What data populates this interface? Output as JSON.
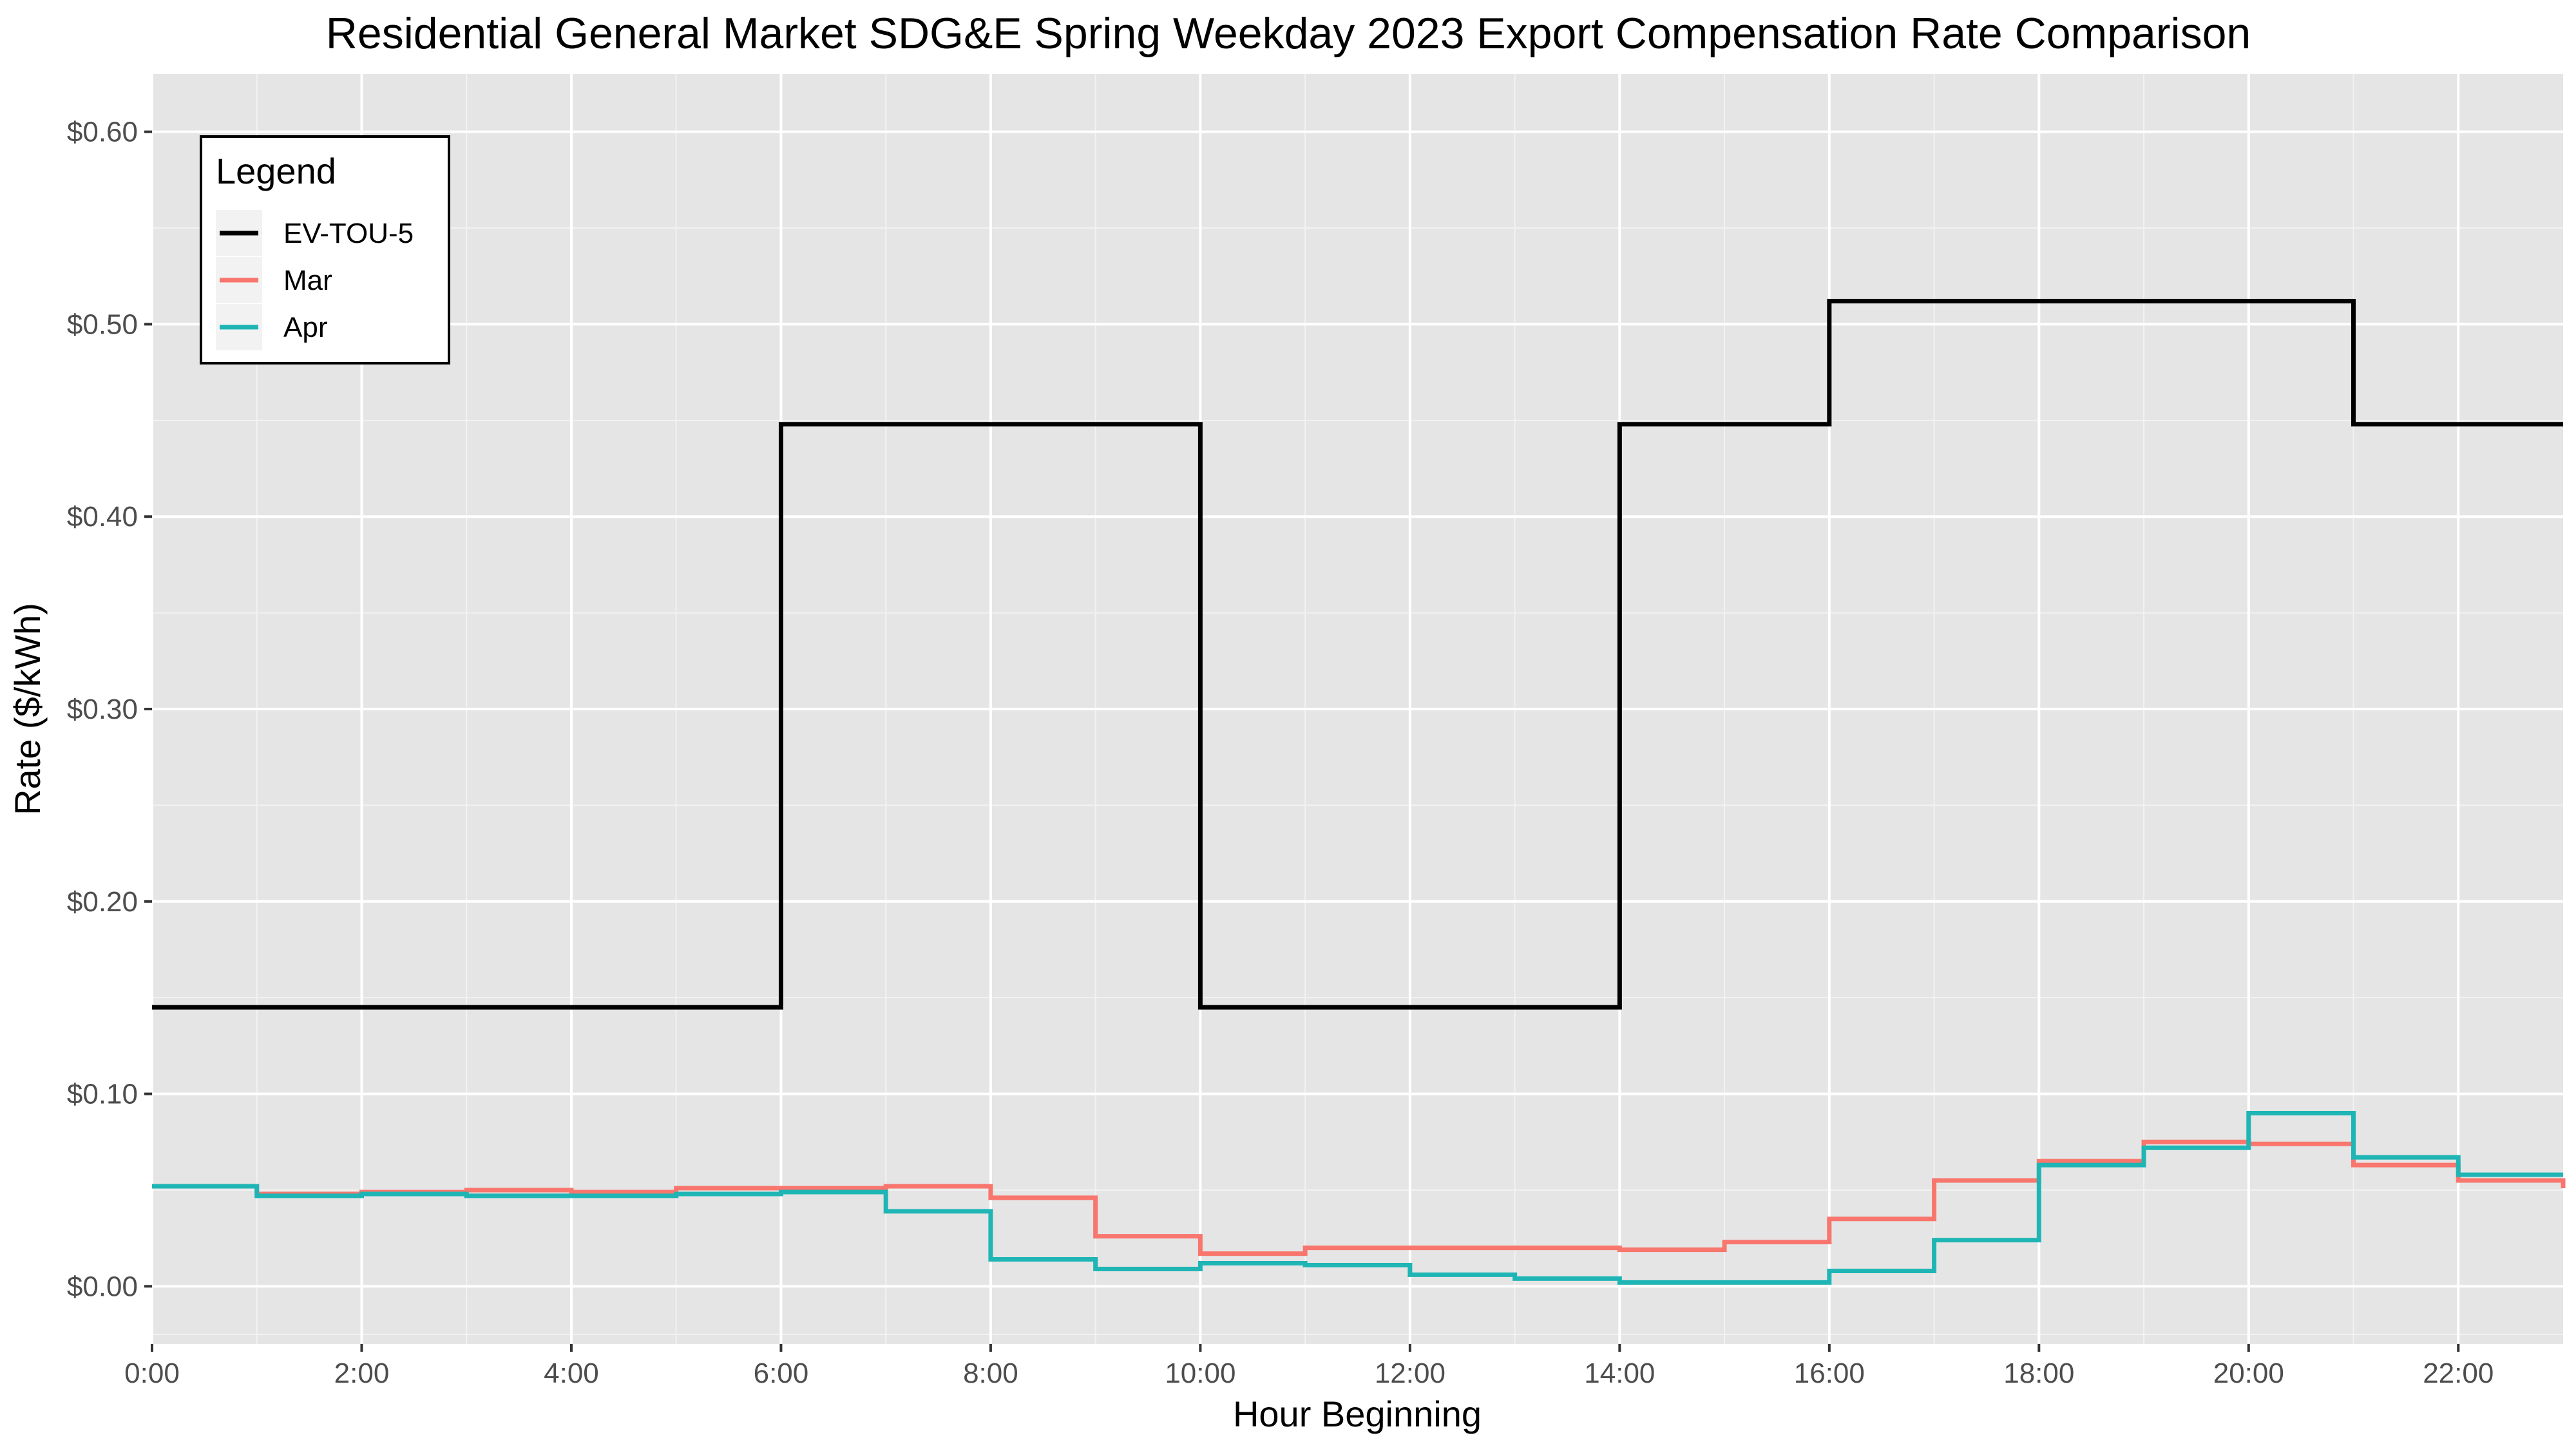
{
  "chart_data": {
    "type": "line",
    "step": true,
    "title": "Residential General Market SDG&E Spring Weekday 2023 Export Compensation Rate Comparison",
    "xlabel": "Hour Beginning",
    "ylabel": "Rate ($/kWh)",
    "xlim": [
      0,
      23
    ],
    "ylim": [
      -0.03,
      0.63
    ],
    "x_ticks": [
      0,
      2,
      4,
      6,
      8,
      10,
      12,
      14,
      16,
      18,
      20,
      22
    ],
    "x_tick_labels": [
      "0:00",
      "2:00",
      "4:00",
      "6:00",
      "8:00",
      "10:00",
      "12:00",
      "14:00",
      "16:00",
      "18:00",
      "20:00",
      "22:00"
    ],
    "y_ticks": [
      0,
      0.1,
      0.2,
      0.3,
      0.4,
      0.5,
      0.6
    ],
    "y_tick_labels": [
      "$0.00",
      "$0.10",
      "$0.20",
      "$0.30",
      "$0.40",
      "$0.50",
      "$0.60"
    ],
    "grid": true,
    "background": "#e5e5e5",
    "legend": {
      "title": "Legend",
      "position": "top-left"
    },
    "x": [
      0,
      1,
      2,
      3,
      4,
      5,
      6,
      7,
      8,
      9,
      10,
      11,
      12,
      13,
      14,
      15,
      16,
      17,
      18,
      19,
      20,
      21,
      22,
      23
    ],
    "series": [
      {
        "name": "EV-TOU-5",
        "color": "#000000",
        "values": [
          0.145,
          0.145,
          0.145,
          0.145,
          0.145,
          0.145,
          0.448,
          0.448,
          0.448,
          0.448,
          0.145,
          0.145,
          0.145,
          0.145,
          0.448,
          0.448,
          0.512,
          0.512,
          0.512,
          0.512,
          0.512,
          0.448,
          0.448,
          0.448
        ]
      },
      {
        "name": "Mar",
        "color": "#f8766d",
        "values": [
          0.052,
          0.048,
          0.049,
          0.05,
          0.049,
          0.051,
          0.051,
          0.052,
          0.046,
          0.026,
          0.017,
          0.02,
          0.02,
          0.02,
          0.019,
          0.023,
          0.035,
          0.055,
          0.065,
          0.075,
          0.074,
          0.063,
          0.055,
          0.051
        ]
      },
      {
        "name": "Apr",
        "color": "#1fb5b5",
        "values": [
          0.052,
          0.047,
          0.048,
          0.047,
          0.047,
          0.048,
          0.049,
          0.039,
          0.014,
          0.009,
          0.012,
          0.011,
          0.006,
          0.004,
          0.002,
          0.002,
          0.008,
          0.024,
          0.063,
          0.072,
          0.09,
          0.067,
          0.058,
          0.058
        ]
      }
    ]
  }
}
